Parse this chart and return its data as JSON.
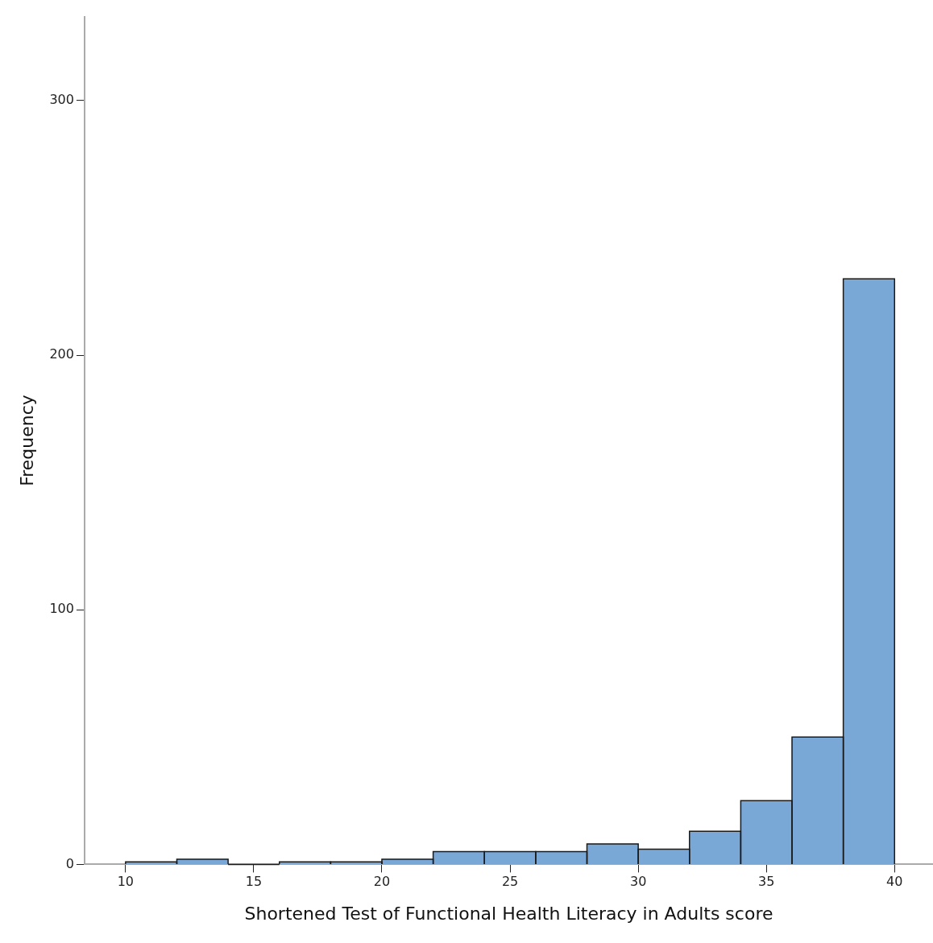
{
  "chart_data": {
    "type": "histogram",
    "xlabel": "Shortened Test of Functional Health Literacy in Adults score",
    "ylabel": "Frequency",
    "bins": [
      10,
      12,
      14,
      16,
      18,
      20,
      22,
      24,
      26,
      28,
      30,
      32,
      34,
      36,
      38,
      40
    ],
    "values": [
      1,
      2,
      0,
      1,
      1,
      2,
      5,
      5,
      5,
      8,
      6,
      13,
      25,
      50,
      230
    ],
    "color": "#7aa8d6",
    "xlim": [
      8.4,
      41.5
    ],
    "xticks": [
      10,
      15,
      20,
      25,
      30,
      35,
      40
    ],
    "ylim": [
      0,
      333
    ],
    "yticks": [
      0,
      100,
      200,
      300
    ],
    "grid": false,
    "legend": false
  }
}
